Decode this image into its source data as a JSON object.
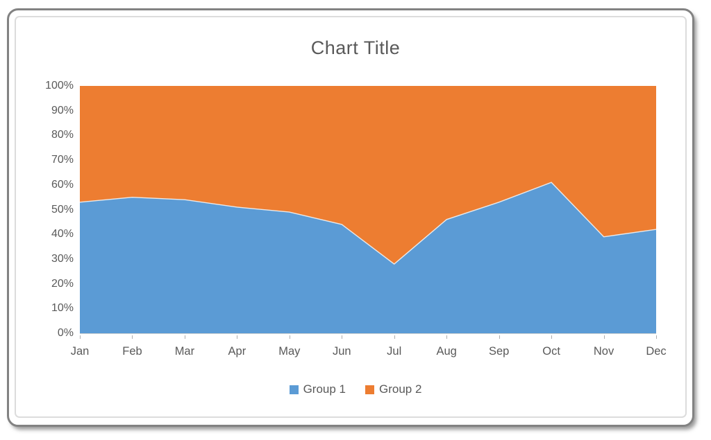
{
  "chart_data": {
    "type": "area",
    "stacking": "percent",
    "title": "Chart Title",
    "categories": [
      "Jan",
      "Feb",
      "Mar",
      "Apr",
      "May",
      "Jun",
      "Jul",
      "Aug",
      "Sep",
      "Oct",
      "Nov",
      "Dec"
    ],
    "series": [
      {
        "name": "Group 1",
        "color": "#5B9BD5",
        "values": [
          53,
          55,
          54,
          51,
          49,
          44,
          28,
          46,
          53,
          61,
          39,
          42
        ]
      },
      {
        "name": "Group 2",
        "color": "#ED7D31",
        "values": [
          47,
          45,
          46,
          49,
          51,
          56,
          72,
          54,
          47,
          39,
          61,
          58
        ]
      }
    ],
    "xlabel": "",
    "ylabel": "",
    "ylim": [
      0,
      100
    ],
    "y_tick_labels": [
      "0%",
      "10%",
      "20%",
      "30%",
      "40%",
      "50%",
      "60%",
      "70%",
      "80%",
      "90%",
      "100%"
    ],
    "grid": false,
    "legend_position": "bottom"
  },
  "colors": {
    "axis_text": "#595959",
    "axis_line": "#d2d2d2",
    "tick_mark": "#aeaeae",
    "series_boundary_stroke": "#e9e9e9",
    "outer_frame_border": "#828282",
    "inner_frame_border": "#dcdcdc"
  }
}
